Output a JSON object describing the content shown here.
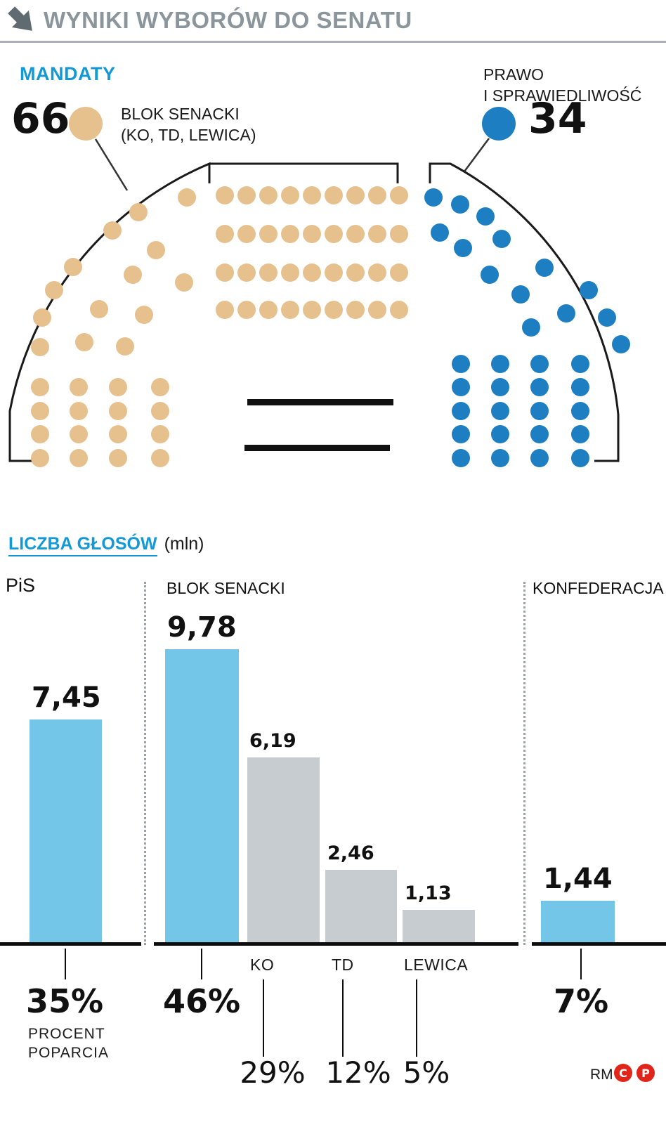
{
  "header": {
    "title": "WYNIKI WYBORÓW DO SENATU"
  },
  "seats": {
    "section_label": "MANDATY",
    "left_value": "66",
    "left_name_line1": "BLOK SENACKI",
    "left_name_line2": "(KO, TD, LEWICA)",
    "right_name_line1": "PRAWO",
    "right_name_line2": "I SPRAWIEDLIWOŚĆ",
    "right_value": "34"
  },
  "votes": {
    "section_label": "LICZBA GŁOSÓW",
    "unit": "(mln)",
    "group_labels": {
      "pis": "PiS",
      "blok": "BLOK SENACKI",
      "konfederacja": "KONFEDERACJA"
    },
    "sub_labels": {
      "ko": "KO",
      "td": "TD",
      "lewica": "LEWICA"
    },
    "percent_caption_line1": "PROCENT",
    "percent_caption_line2": "POPARCIA"
  },
  "chart_data": [
    {
      "type": "parliament",
      "title": "MANDATY",
      "total_seats": 100,
      "series": [
        {
          "name": "BLOK SENACKI (KO, TD, LEWICA)",
          "seats": 66,
          "color": "#e6c18e"
        },
        {
          "name": "PRAWO I SPRAWIEDLIWOŚĆ",
          "seats": 34,
          "color": "#1d7fc1"
        }
      ]
    },
    {
      "type": "bar",
      "title": "LICZBA GŁOSÓW (mln)",
      "categories": [
        "PiS",
        "BLOK SENACKI",
        "KO",
        "TD",
        "LEWICA",
        "KONFEDERACJA"
      ],
      "values": [
        7.45,
        9.78,
        6.19,
        2.46,
        1.13,
        1.44
      ],
      "value_labels": [
        "7,45",
        "9,78",
        "6,19",
        "2,46",
        "1,13",
        "1,44"
      ],
      "percentages": [
        "35%",
        "46%",
        "29%",
        "12%",
        "5%",
        "7%"
      ],
      "bar_colors": [
        "#74c6e9",
        "#74c6e9",
        "#c7ccd1",
        "#c7ccd1",
        "#c7ccd1",
        "#74c6e9"
      ],
      "ylim": [
        0,
        9.78
      ],
      "ylabel": "mln",
      "legend_position": "none",
      "grid": false
    }
  ],
  "footer": {
    "credit": "RM",
    "copyright_c": "C",
    "copyright_p": "P"
  },
  "colors": {
    "accent_blue": "#1499d6",
    "seat_tan": "#e6c18e",
    "seat_blue": "#1d7fc1",
    "bar_blue": "#74c6e9",
    "bar_gray": "#c7ccd1",
    "title_gray": "#8b959c"
  }
}
